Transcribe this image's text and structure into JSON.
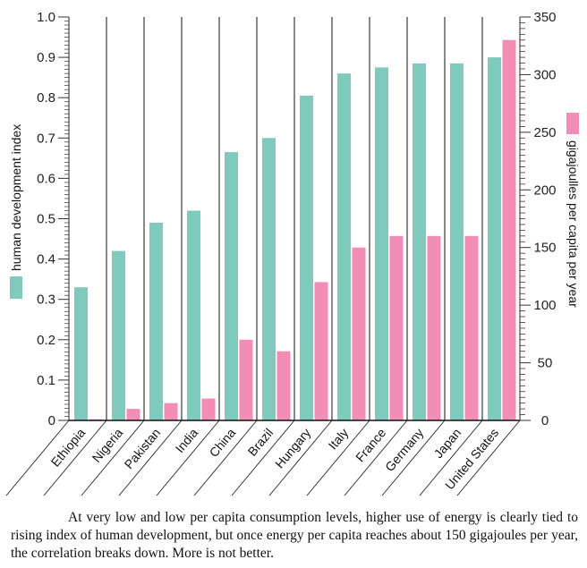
{
  "chart_data": {
    "type": "bar",
    "title": "",
    "categories": [
      "Ethiopia",
      "Nigeria",
      "Pakistan",
      "India",
      "China",
      "Brazil",
      "Hungary",
      "Italy",
      "France",
      "Germany",
      "Japan",
      "United States"
    ],
    "series": [
      {
        "name": "human development index",
        "axis": "left",
        "color": "#7ecbbd",
        "values": [
          0.33,
          0.42,
          0.49,
          0.52,
          0.665,
          0.7,
          0.805,
          0.86,
          0.875,
          0.885,
          0.885,
          0.9
        ]
      },
      {
        "name": "gigajoulles per capita per year",
        "axis": "right",
        "color": "#f28db5",
        "values": [
          1,
          10,
          15,
          19,
          70,
          60,
          120,
          150,
          160,
          160,
          160,
          330
        ]
      }
    ],
    "left_axis": {
      "label": "human development index",
      "ylim": [
        0,
        1.0
      ],
      "ticks": [
        "0",
        "0.1",
        "0.2",
        "0.3",
        "0.4",
        "0.5",
        "0.6",
        "0.7",
        "0.8",
        "0.9",
        "1.0"
      ],
      "tick_values": [
        0,
        0.1,
        0.2,
        0.3,
        0.4,
        0.5,
        0.6,
        0.7,
        0.8,
        0.9,
        1.0
      ]
    },
    "right_axis": {
      "label": "gigajoulles per capita per year",
      "ylim": [
        0,
        350
      ],
      "ticks": [
        "0",
        "50",
        "100",
        "150",
        "200",
        "250",
        "300",
        "350"
      ],
      "tick_values": [
        0,
        50,
        100,
        150,
        200,
        250,
        300,
        350
      ]
    },
    "xlabel": "",
    "grid": false,
    "legend": "axis-side swatches (left and right)"
  },
  "caption": "At very low and low per capita consumption levels, higher use of energy is clearly tied to rising index of human development, but once energy per capita reaches about 150 gigajoules per year, the correlation breaks down. More is not better."
}
